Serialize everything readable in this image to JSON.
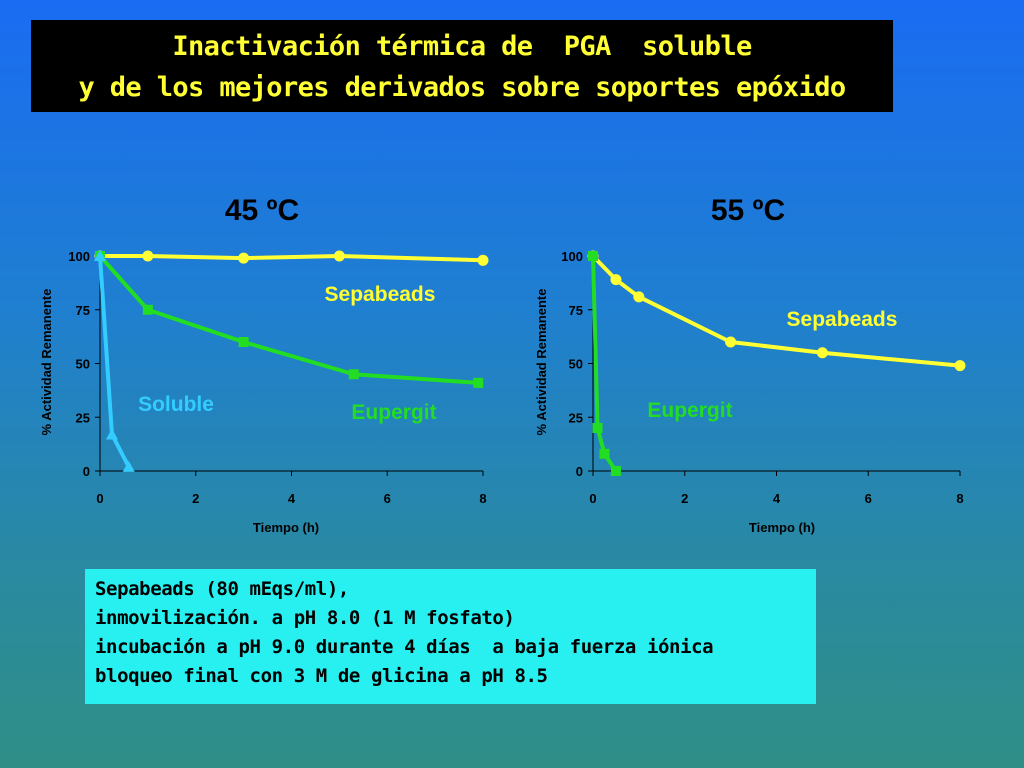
{
  "title": {
    "line1": "Inactivación térmica de  PGA  soluble",
    "line2": "y de los mejores derivados sobre soportes epóxido"
  },
  "notes": [
    "Sepabeads (80 mEqs/ml),",
    "inmovilización. a pH 8.0 (1 M fosfato)",
    "incubación a pH 9.0 durante 4 días  a baja fuerza iónica",
    "bloqueo final con 3 M de glicina a pH 8.5"
  ],
  "colors": {
    "sepabeads": "#ffff33",
    "eupergit": "#22dd22",
    "soluble": "#33ccff"
  },
  "chart_data": [
    {
      "type": "line",
      "title": "45 ºC",
      "xlabel": "Tiempo (h)",
      "ylabel": "% Actividad Remanente",
      "xlim": [
        0,
        8
      ],
      "ylim": [
        0,
        100
      ],
      "xticks": [
        "0",
        "2",
        "4",
        "6",
        "8"
      ],
      "yticks": [
        "0",
        "25",
        "50",
        "75",
        "100"
      ],
      "grid": false,
      "series": [
        {
          "name": "Sepabeads",
          "marker": "circle",
          "color": "#ffff33",
          "x": [
            0,
            1,
            3,
            5,
            8
          ],
          "y": [
            100,
            100,
            99,
            100,
            98
          ]
        },
        {
          "name": "Eupergit",
          "marker": "square",
          "color": "#22dd22",
          "x": [
            0,
            1,
            3,
            5.3,
            7.9
          ],
          "y": [
            100,
            75,
            60,
            45,
            41
          ]
        },
        {
          "name": "Soluble",
          "marker": "triangle",
          "color": "#33ccff",
          "x": [
            0,
            0.25,
            0.6
          ],
          "y": [
            100,
            17,
            2
          ]
        }
      ]
    },
    {
      "type": "line",
      "title": "55 ºC",
      "xlabel": "Tiempo (h)",
      "ylabel": "% Actividad Remanente",
      "xlim": [
        0,
        8
      ],
      "ylim": [
        0,
        100
      ],
      "xticks": [
        "0",
        "2",
        "4",
        "6",
        "8"
      ],
      "yticks": [
        "0",
        "25",
        "50",
        "75",
        "100"
      ],
      "grid": false,
      "series": [
        {
          "name": "Sepabeads",
          "marker": "circle",
          "color": "#ffff33",
          "x": [
            0,
            0.5,
            1,
            3,
            5,
            8
          ],
          "y": [
            100,
            89,
            81,
            60,
            55,
            49
          ]
        },
        {
          "name": "Eupergit",
          "marker": "square",
          "color": "#22dd22",
          "x": [
            0,
            0.1,
            0.25,
            0.5
          ],
          "y": [
            100,
            20,
            8,
            0
          ]
        }
      ]
    }
  ]
}
